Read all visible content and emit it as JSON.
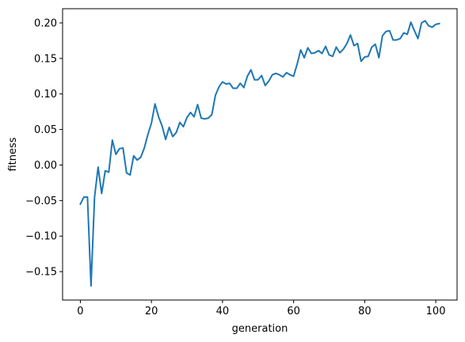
{
  "chart_data": {
    "type": "line",
    "title": "",
    "xlabel": "generation",
    "ylabel": "fitness",
    "xlim": [
      -5,
      106
    ],
    "ylim": [
      -0.19,
      0.22
    ],
    "xticks": [
      0,
      20,
      40,
      60,
      80,
      100
    ],
    "xtick_labels": [
      "0",
      "20",
      "40",
      "60",
      "80",
      "100"
    ],
    "yticks": [
      -0.15,
      -0.1,
      -0.05,
      0.0,
      0.05,
      0.1,
      0.15,
      0.2
    ],
    "ytick_labels": [
      "−0.15",
      "−0.10",
      "−0.05",
      "0.00",
      "0.05",
      "0.10",
      "0.15",
      "0.20"
    ],
    "grid": false,
    "series": [
      {
        "color": "#1f77b4",
        "x": [
          0,
          1,
          2,
          3,
          4,
          5,
          6,
          7,
          8,
          9,
          10,
          11,
          12,
          13,
          14,
          15,
          16,
          17,
          18,
          19,
          20,
          21,
          22,
          23,
          24,
          25,
          26,
          27,
          28,
          29,
          30,
          31,
          32,
          33,
          34,
          35,
          36,
          37,
          38,
          39,
          40,
          41,
          42,
          43,
          44,
          45,
          46,
          47,
          48,
          49,
          50,
          51,
          52,
          53,
          54,
          55,
          56,
          57,
          58,
          59,
          60,
          61,
          62,
          63,
          64,
          65,
          66,
          67,
          68,
          69,
          70,
          71,
          72,
          73,
          74,
          75,
          76,
          77,
          78,
          79,
          80,
          81,
          82,
          83,
          84,
          85,
          86,
          87,
          88,
          89,
          90,
          91,
          92,
          93,
          94,
          95,
          96,
          97,
          98,
          99,
          100,
          101
        ],
        "y": [
          -0.055,
          -0.045,
          -0.045,
          -0.17,
          -0.045,
          -0.003,
          -0.04,
          -0.008,
          -0.01,
          0.035,
          0.015,
          0.023,
          0.024,
          -0.011,
          -0.014,
          0.013,
          0.007,
          0.011,
          0.024,
          0.043,
          0.059,
          0.086,
          0.068,
          0.055,
          0.036,
          0.053,
          0.04,
          0.046,
          0.06,
          0.054,
          0.067,
          0.074,
          0.068,
          0.085,
          0.066,
          0.065,
          0.066,
          0.071,
          0.098,
          0.11,
          0.117,
          0.114,
          0.115,
          0.108,
          0.108,
          0.115,
          0.109,
          0.125,
          0.134,
          0.12,
          0.12,
          0.126,
          0.112,
          0.118,
          0.127,
          0.129,
          0.127,
          0.124,
          0.13,
          0.127,
          0.125,
          0.142,
          0.162,
          0.151,
          0.165,
          0.157,
          0.158,
          0.161,
          0.157,
          0.167,
          0.155,
          0.153,
          0.166,
          0.158,
          0.163,
          0.171,
          0.183,
          0.168,
          0.171,
          0.146,
          0.152,
          0.153,
          0.166,
          0.17,
          0.151,
          0.182,
          0.188,
          0.189,
          0.176,
          0.176,
          0.178,
          0.186,
          0.184,
          0.201,
          0.189,
          0.178,
          0.2,
          0.203,
          0.196,
          0.194,
          0.198,
          0.199
        ]
      }
    ]
  }
}
